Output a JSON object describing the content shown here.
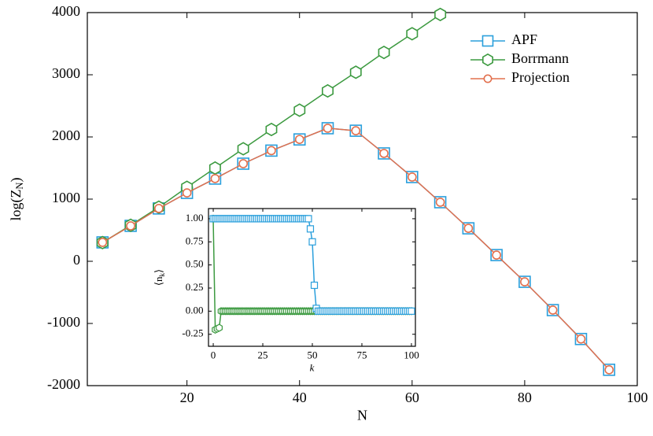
{
  "chart_data": [
    {
      "type": "line",
      "xlabel": "N",
      "ylabel": "log(Z_N)",
      "x": [
        5,
        10,
        15,
        20,
        25,
        30,
        35,
        40,
        45,
        50,
        55,
        60,
        65,
        70,
        75,
        80,
        85,
        90,
        95
      ],
      "xlim": [
        2.3,
        100
      ],
      "xticks": [
        20,
        40,
        60,
        80,
        100
      ],
      "ylim": [
        -2000,
        4000
      ],
      "yticks": [
        -2000,
        -1000,
        0,
        1000,
        2000,
        3000,
        4000
      ],
      "legend": "upper right",
      "series": [
        {
          "name": "APF",
          "color": "#2a9fdc",
          "marker": "square",
          "values": [
            304,
            570,
            850,
            1100,
            1330,
            1570,
            1780,
            1960,
            2140,
            2100,
            1735,
            1355,
            950,
            530,
            100,
            -330,
            -785,
            -1250,
            -1745
          ]
        },
        {
          "name": "Borrmann",
          "color": "#3c9a40",
          "marker": "hexagon",
          "values": [
            300,
            580,
            870,
            1190,
            1500,
            1810,
            2120,
            2430,
            2740,
            3040,
            3360,
            3660,
            3970,
            null,
            null,
            null,
            null,
            null,
            null
          ]
        },
        {
          "name": "Projection",
          "color": "#e2704e",
          "marker": "circle",
          "values": [
            304,
            570,
            850,
            1100,
            1330,
            1570,
            1780,
            1960,
            2140,
            2100,
            1735,
            1355,
            950,
            530,
            100,
            -330,
            -785,
            -1250,
            -1745
          ]
        }
      ]
    },
    {
      "type": "line",
      "xlabel": "k",
      "ylabel": "⟨n_k⟩",
      "x": [
        0,
        1,
        2,
        3,
        4,
        5,
        6,
        7,
        8,
        9,
        10,
        11,
        12,
        13,
        14,
        15,
        16,
        17,
        18,
        19,
        20,
        21,
        22,
        23,
        24,
        25,
        26,
        27,
        28,
        29,
        30,
        31,
        32,
        33,
        34,
        35,
        36,
        37,
        38,
        39,
        40,
        41,
        42,
        43,
        44,
        45,
        46,
        47,
        48,
        49,
        50,
        51,
        52,
        53,
        54,
        55,
        56,
        57,
        58,
        59,
        60,
        61,
        62,
        63,
        64,
        65,
        66,
        67,
        68,
        69,
        70,
        71,
        72,
        73,
        74,
        75,
        76,
        77,
        78,
        79,
        80,
        81,
        82,
        83,
        84,
        85,
        86,
        87,
        88,
        89,
        90,
        91,
        92,
        93,
        94,
        95,
        96,
        97,
        98,
        99,
        100
      ],
      "xlim": [
        -2.4,
        102
      ],
      "xticks": [
        0,
        25,
        50,
        75,
        100
      ],
      "ylim": [
        -0.38,
        1.11
      ],
      "yticks": [
        {
          "value": -0.25,
          "label": "-0.25"
        },
        {
          "value": 0,
          "label": "0.00"
        },
        {
          "value": 0.25,
          "label": "0.25"
        },
        {
          "value": 0.5,
          "label": "0.50"
        },
        {
          "value": 0.75,
          "label": "0.75"
        },
        {
          "value": 1,
          "label": "1.00"
        }
      ],
      "series": [
        {
          "color": "#3c9a40",
          "marker": "hexagon",
          "values": [
            1,
            -0.2,
            -0.19,
            -0.18,
            0,
            0,
            0,
            0,
            0,
            0,
            0,
            0,
            0,
            0,
            0,
            0,
            0,
            0,
            0,
            0,
            0,
            0,
            0,
            0,
            0,
            0,
            0,
            0,
            0,
            0,
            0,
            0,
            0,
            0,
            0,
            0,
            0,
            0,
            0,
            0,
            0,
            0,
            0,
            0,
            0,
            0,
            0,
            0,
            0,
            0,
            0,
            0,
            0,
            0,
            0,
            0,
            0,
            0,
            0,
            0,
            0,
            0,
            0,
            0,
            0,
            0,
            0,
            0,
            0,
            0,
            0,
            0,
            0,
            0,
            0,
            0,
            0,
            0,
            0,
            0,
            0,
            0,
            0,
            0,
            0,
            0,
            0,
            0,
            0,
            0,
            0,
            0,
            0,
            0,
            0,
            0,
            0,
            0,
            0,
            0,
            0
          ]
        },
        {
          "color": "#2a9fdc",
          "marker": "square",
          "values": [
            1,
            1,
            1,
            1,
            1,
            1,
            1,
            1,
            1,
            1,
            1,
            1,
            1,
            1,
            1,
            1,
            1,
            1,
            1,
            1,
            1,
            1,
            1,
            1,
            1,
            1,
            1,
            1,
            1,
            1,
            1,
            1,
            1,
            1,
            1,
            1,
            1,
            1,
            1,
            1,
            1,
            1,
            1,
            1,
            1,
            1,
            1,
            1,
            1,
            0.89,
            0.75,
            0.28,
            0.03,
            0,
            0,
            0,
            0,
            0,
            0,
            0,
            0,
            0,
            0,
            0,
            0,
            0,
            0,
            0,
            0,
            0,
            0,
            0,
            0,
            0,
            0,
            0,
            0,
            0,
            0,
            0,
            0,
            0,
            0,
            0,
            0,
            0,
            0,
            0,
            0,
            0,
            0,
            0,
            0,
            0,
            0,
            0,
            0,
            0,
            0,
            0,
            0
          ]
        }
      ]
    }
  ]
}
